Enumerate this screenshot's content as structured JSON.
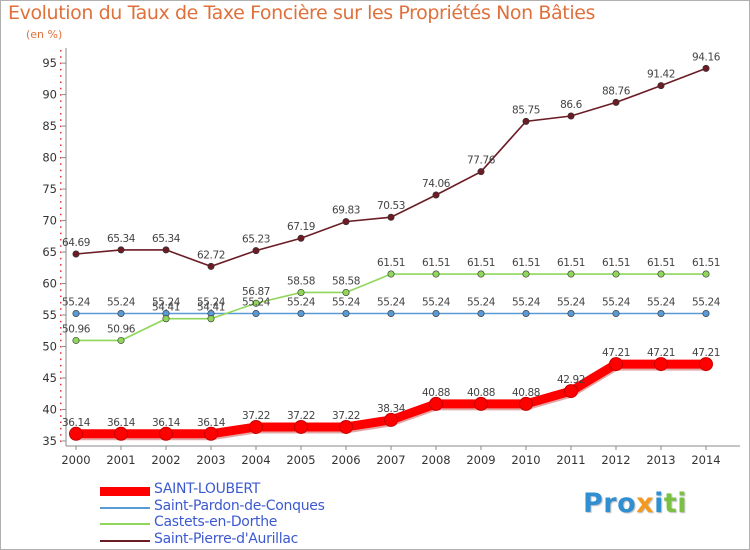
{
  "chart_data": {
    "type": "line",
    "title": "Evolution du Taux de Taxe Foncière sur les Propriétés Non Bâties",
    "ylabel": "(en %)",
    "xlabel": "",
    "x": [
      "2000",
      "2001",
      "2002",
      "2003",
      "2004",
      "2005",
      "2006",
      "2007",
      "2008",
      "2009",
      "2010",
      "2011",
      "2012",
      "2013",
      "2014"
    ],
    "yticks": [
      35,
      40,
      45,
      50,
      55,
      60,
      65,
      70,
      75,
      80,
      85,
      90,
      95
    ],
    "ylim": [
      34.2,
      97.4
    ],
    "grid": false,
    "legend": "bottom-left",
    "series": [
      {
        "name": "SAINT-LOUBERT",
        "color": "#ff0000",
        "values": [
          36.14,
          36.14,
          36.14,
          36.14,
          37.22,
          37.22,
          37.22,
          38.34,
          40.88,
          40.88,
          40.88,
          42.92,
          47.21,
          47.21,
          47.21
        ],
        "labels": [
          "36.14",
          "36.14",
          "36.14",
          "36.14",
          "37.22",
          "37.22",
          "37.22",
          "38.34",
          "40.88",
          "40.88",
          "40.88",
          "42.92",
          "47.21",
          "47.21",
          "47.21"
        ]
      },
      {
        "name": "Saint-Pardon-de-Conques",
        "color": "#5b9bd5",
        "values": [
          55.24,
          55.24,
          55.24,
          55.24,
          55.24,
          55.24,
          55.24,
          55.24,
          55.24,
          55.24,
          55.24,
          55.24,
          55.24,
          55.24,
          55.24
        ],
        "labels": [
          "55.24",
          "55.24",
          "55.24",
          "55.24",
          "55.24",
          "55.24",
          "55.24",
          "55.24",
          "55.24",
          "55.24",
          "55.24",
          "55.24",
          "55.24",
          "55.24",
          "55.24"
        ]
      },
      {
        "name": "Castets-en-Dorthe",
        "color": "#8fd65b",
        "values": [
          50.96,
          50.96,
          54.41,
          54.41,
          56.87,
          58.58,
          58.58,
          61.51,
          61.51,
          61.51,
          61.51,
          61.51,
          61.51,
          61.51,
          61.51
        ],
        "labels": [
          "50.96",
          "50.96",
          "54.41",
          "54.41",
          "56.87",
          "58.58",
          "58.58",
          "61.51",
          "61.51",
          "61.51",
          "61.51",
          "61.51",
          "61.51",
          "61.51",
          "61.51"
        ]
      },
      {
        "name": "Saint-Pierre-d'Aurillac",
        "color": "#6b1c24",
        "values": [
          64.69,
          65.34,
          65.34,
          62.72,
          65.23,
          67.19,
          69.83,
          70.53,
          74.06,
          77.76,
          85.75,
          86.6,
          88.76,
          91.42,
          94.16
        ],
        "labels": [
          "64.69",
          "65.34",
          "65.34",
          "62.72",
          "65.23",
          "67.19",
          "69.83",
          "70.53",
          "74.06",
          "77.76",
          "85.75",
          "86.6",
          "88.76",
          "91.42",
          "94.16"
        ]
      }
    ]
  },
  "logo": {
    "p1": "Pro",
    "p2": "x",
    "p3": "i",
    "p4": "ti"
  }
}
